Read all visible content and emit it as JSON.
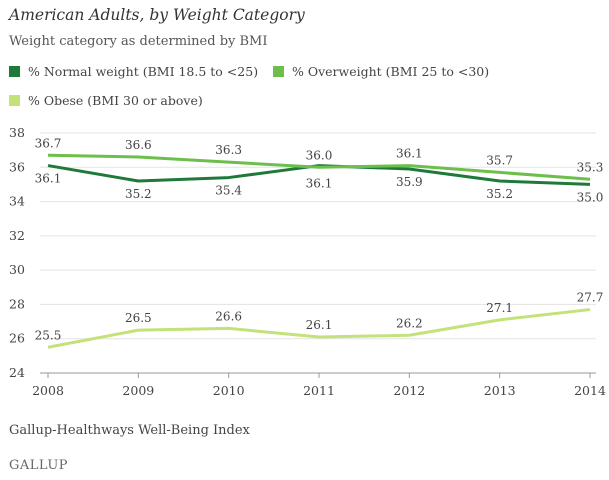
{
  "chart_data": {
    "type": "line",
    "title": "American Adults, by Weight Category",
    "subtitle": "Weight category as determined by BMI",
    "x": [
      "2008",
      "2009",
      "2010",
      "2011",
      "2012",
      "2013",
      "2014"
    ],
    "ylim": [
      24,
      38
    ],
    "yticks": [
      "24",
      "26",
      "28",
      "30",
      "32",
      "34",
      "36",
      "38"
    ],
    "grid": true,
    "series": [
      {
        "name": "% Normal weight (BMI 18.5 to <25)",
        "color": "#1f7a3a",
        "values": [
          36.1,
          35.2,
          35.4,
          36.1,
          35.9,
          35.2,
          35.0
        ],
        "labels": [
          "36.1",
          "35.2",
          "35.4",
          "36.1",
          "35.9",
          "35.2",
          "35.0"
        ]
      },
      {
        "name": "% Overweight (BMI 25 to <30)",
        "color": "#6cbf4b",
        "values": [
          36.7,
          36.6,
          36.3,
          36.0,
          36.1,
          35.7,
          35.3
        ],
        "labels": [
          "36.7",
          "36.6",
          "36.3",
          "36.0",
          "36.1",
          "35.7",
          "35.3"
        ]
      },
      {
        "name": "% Obese (BMI 30 or above)",
        "color": "#c3e27a",
        "values": [
          25.5,
          26.5,
          26.6,
          26.1,
          26.2,
          27.1,
          27.7
        ],
        "labels": [
          "25.5",
          "26.5",
          "26.6",
          "26.1",
          "26.2",
          "27.1",
          "27.7"
        ]
      }
    ],
    "source": "Gallup-Healthways Well-Being Index",
    "brand": "GALLUP"
  }
}
